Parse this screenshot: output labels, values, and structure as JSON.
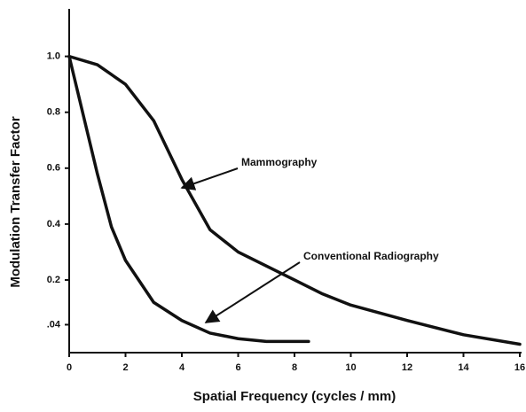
{
  "chart_data": {
    "type": "line",
    "xlabel": "Spatial Frequency (cycles / mm)",
    "ylabel": "Modulation Transfer Factor",
    "xlim": [
      0,
      16
    ],
    "ylim": [
      -0.06,
      1.17
    ],
    "xticks": [
      0,
      2,
      4,
      6,
      8,
      10,
      12,
      14,
      16
    ],
    "yticks": [
      {
        "value": 0.04,
        "label": ".04"
      },
      0.2,
      0.4,
      0.6,
      0.8,
      {
        "value": 1.0,
        "label": "1.0"
      }
    ],
    "series": [
      {
        "name": "Mammography",
        "color": "#111111",
        "x": [
          0,
          1,
          2,
          3,
          4,
          5,
          6,
          7,
          8,
          9,
          10,
          12,
          14,
          16
        ],
        "values": [
          1.0,
          0.97,
          0.9,
          0.77,
          0.56,
          0.38,
          0.3,
          0.25,
          0.2,
          0.15,
          0.11,
          0.055,
          0.004,
          -0.03
        ]
      },
      {
        "name": "Conventional Radiography",
        "color": "#111111",
        "x": [
          0,
          0.5,
          1,
          1.5,
          2,
          3,
          4,
          5,
          6,
          7,
          8.5
        ],
        "values": [
          1.0,
          0.79,
          0.58,
          0.39,
          0.27,
          0.12,
          0.055,
          0.01,
          -0.01,
          -0.02,
          -0.02
        ]
      }
    ],
    "annotations": [
      "Mammography",
      "Conventional Radiography"
    ]
  }
}
